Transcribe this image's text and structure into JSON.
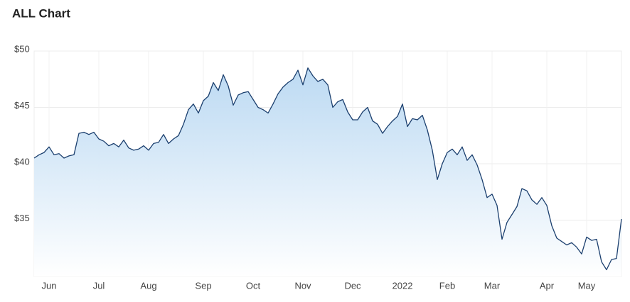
{
  "chart_data": {
    "type": "area-line",
    "title": "ALL Chart",
    "categories": [
      null,
      null,
      null,
      "Jun",
      null,
      null,
      null,
      null,
      null,
      null,
      null,
      null,
      null,
      "Jul",
      null,
      null,
      null,
      null,
      null,
      null,
      null,
      null,
      null,
      "Aug",
      null,
      null,
      null,
      null,
      null,
      null,
      null,
      null,
      null,
      null,
      "Sep",
      null,
      null,
      null,
      null,
      null,
      null,
      null,
      null,
      null,
      "Oct",
      null,
      null,
      null,
      null,
      null,
      null,
      null,
      null,
      null,
      "Nov",
      null,
      null,
      null,
      null,
      null,
      null,
      null,
      null,
      null,
      "Dec",
      null,
      null,
      null,
      null,
      null,
      null,
      null,
      null,
      null,
      "2022",
      null,
      null,
      null,
      null,
      null,
      null,
      null,
      null,
      "Feb",
      null,
      null,
      null,
      null,
      null,
      null,
      null,
      null,
      "Mar",
      null,
      null,
      null,
      null,
      null,
      null,
      null,
      null,
      null,
      null,
      "Apr",
      null,
      null,
      null,
      null,
      null,
      null,
      null,
      "May",
      null,
      null,
      null,
      null,
      null,
      null,
      null
    ],
    "values": [
      40.5,
      40.8,
      41.0,
      41.5,
      40.8,
      40.9,
      40.5,
      40.7,
      40.8,
      42.7,
      42.8,
      42.6,
      42.8,
      42.2,
      42.0,
      41.6,
      41.8,
      41.5,
      42.1,
      41.4,
      41.2,
      41.3,
      41.6,
      41.2,
      41.8,
      41.9,
      42.6,
      41.8,
      42.2,
      42.5,
      43.5,
      44.8,
      45.3,
      44.5,
      45.6,
      46.0,
      47.2,
      46.5,
      47.9,
      46.9,
      45.2,
      46.1,
      46.3,
      46.4,
      45.7,
      45.0,
      44.8,
      44.5,
      45.3,
      46.2,
      46.8,
      47.2,
      47.5,
      48.3,
      47.0,
      48.5,
      47.8,
      47.3,
      47.5,
      47.0,
      45.0,
      45.5,
      45.7,
      44.6,
      43.9,
      43.9,
      44.6,
      45.0,
      43.8,
      43.5,
      42.7,
      43.3,
      43.8,
      44.2,
      45.3,
      43.3,
      44.0,
      43.9,
      44.3,
      43.0,
      41.2,
      38.6,
      40.0,
      41.0,
      41.3,
      40.8,
      41.5,
      40.3,
      40.8,
      39.9,
      38.6,
      37.0,
      37.3,
      36.3,
      33.3,
      34.8,
      35.5,
      36.2,
      37.8,
      37.6,
      36.8,
      36.4,
      37.0,
      36.3,
      34.5,
      33.4,
      33.1,
      32.8,
      33.0,
      32.6,
      32.0,
      33.5,
      33.2,
      33.3,
      31.3,
      30.6,
      31.5,
      31.6,
      35.1
    ],
    "color": "#1b3f6e",
    "fill_color": "#b9d8f2",
    "ylim": [
      30,
      50
    ],
    "yticks": [
      {
        "value": 35,
        "label": "$35"
      },
      {
        "value": 40,
        "label": "$40"
      },
      {
        "value": 45,
        "label": "$45"
      },
      {
        "value": 50,
        "label": "$50"
      }
    ],
    "grid": true
  }
}
